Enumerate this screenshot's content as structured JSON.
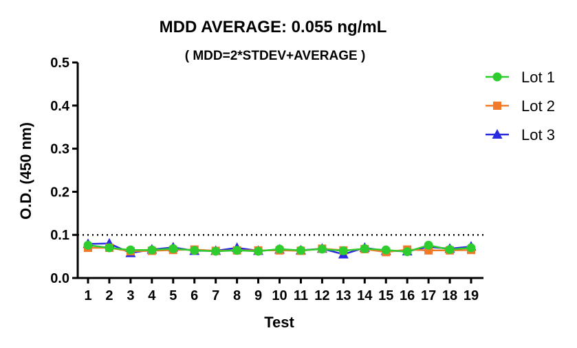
{
  "chart_data": {
    "type": "line",
    "title": "MDD AVERAGE:  0.055 ng/mL",
    "subtitle": "( MDD=2*STDEV+AVERAGE )",
    "xlabel": "Test",
    "ylabel": "O.D. (450 nm)",
    "ylim": [
      0,
      0.5
    ],
    "y_ticks": [
      "0.0",
      "0.1",
      "0.2",
      "0.3",
      "0.4",
      "0.5"
    ],
    "x": [
      1,
      2,
      3,
      4,
      5,
      6,
      7,
      8,
      9,
      10,
      11,
      12,
      13,
      14,
      15,
      16,
      17,
      18,
      19
    ],
    "reference_line": {
      "y": 0.1,
      "style": "dotted"
    },
    "legend_position": "top-right",
    "series": [
      {
        "name": "Lot 1",
        "marker": "circle",
        "color": "#2ecc2e",
        "values": [
          0.076,
          0.07,
          0.065,
          0.065,
          0.068,
          0.064,
          0.062,
          0.064,
          0.062,
          0.067,
          0.064,
          0.067,
          0.063,
          0.068,
          0.065,
          0.061,
          0.076,
          0.066,
          0.07
        ]
      },
      {
        "name": "Lot 2",
        "marker": "square",
        "color": "#f07a2a",
        "values": [
          0.07,
          0.07,
          0.062,
          0.063,
          0.065,
          0.066,
          0.063,
          0.064,
          0.064,
          0.064,
          0.063,
          0.068,
          0.064,
          0.067,
          0.06,
          0.066,
          0.064,
          0.064,
          0.065
        ]
      },
      {
        "name": "Lot 3",
        "marker": "triangle",
        "color": "#2a2ae0",
        "values": [
          0.079,
          0.08,
          0.058,
          0.066,
          0.071,
          0.063,
          0.063,
          0.07,
          0.063,
          0.066,
          0.064,
          0.068,
          0.055,
          0.07,
          0.063,
          0.062,
          0.072,
          0.068,
          0.073
        ]
      }
    ]
  }
}
